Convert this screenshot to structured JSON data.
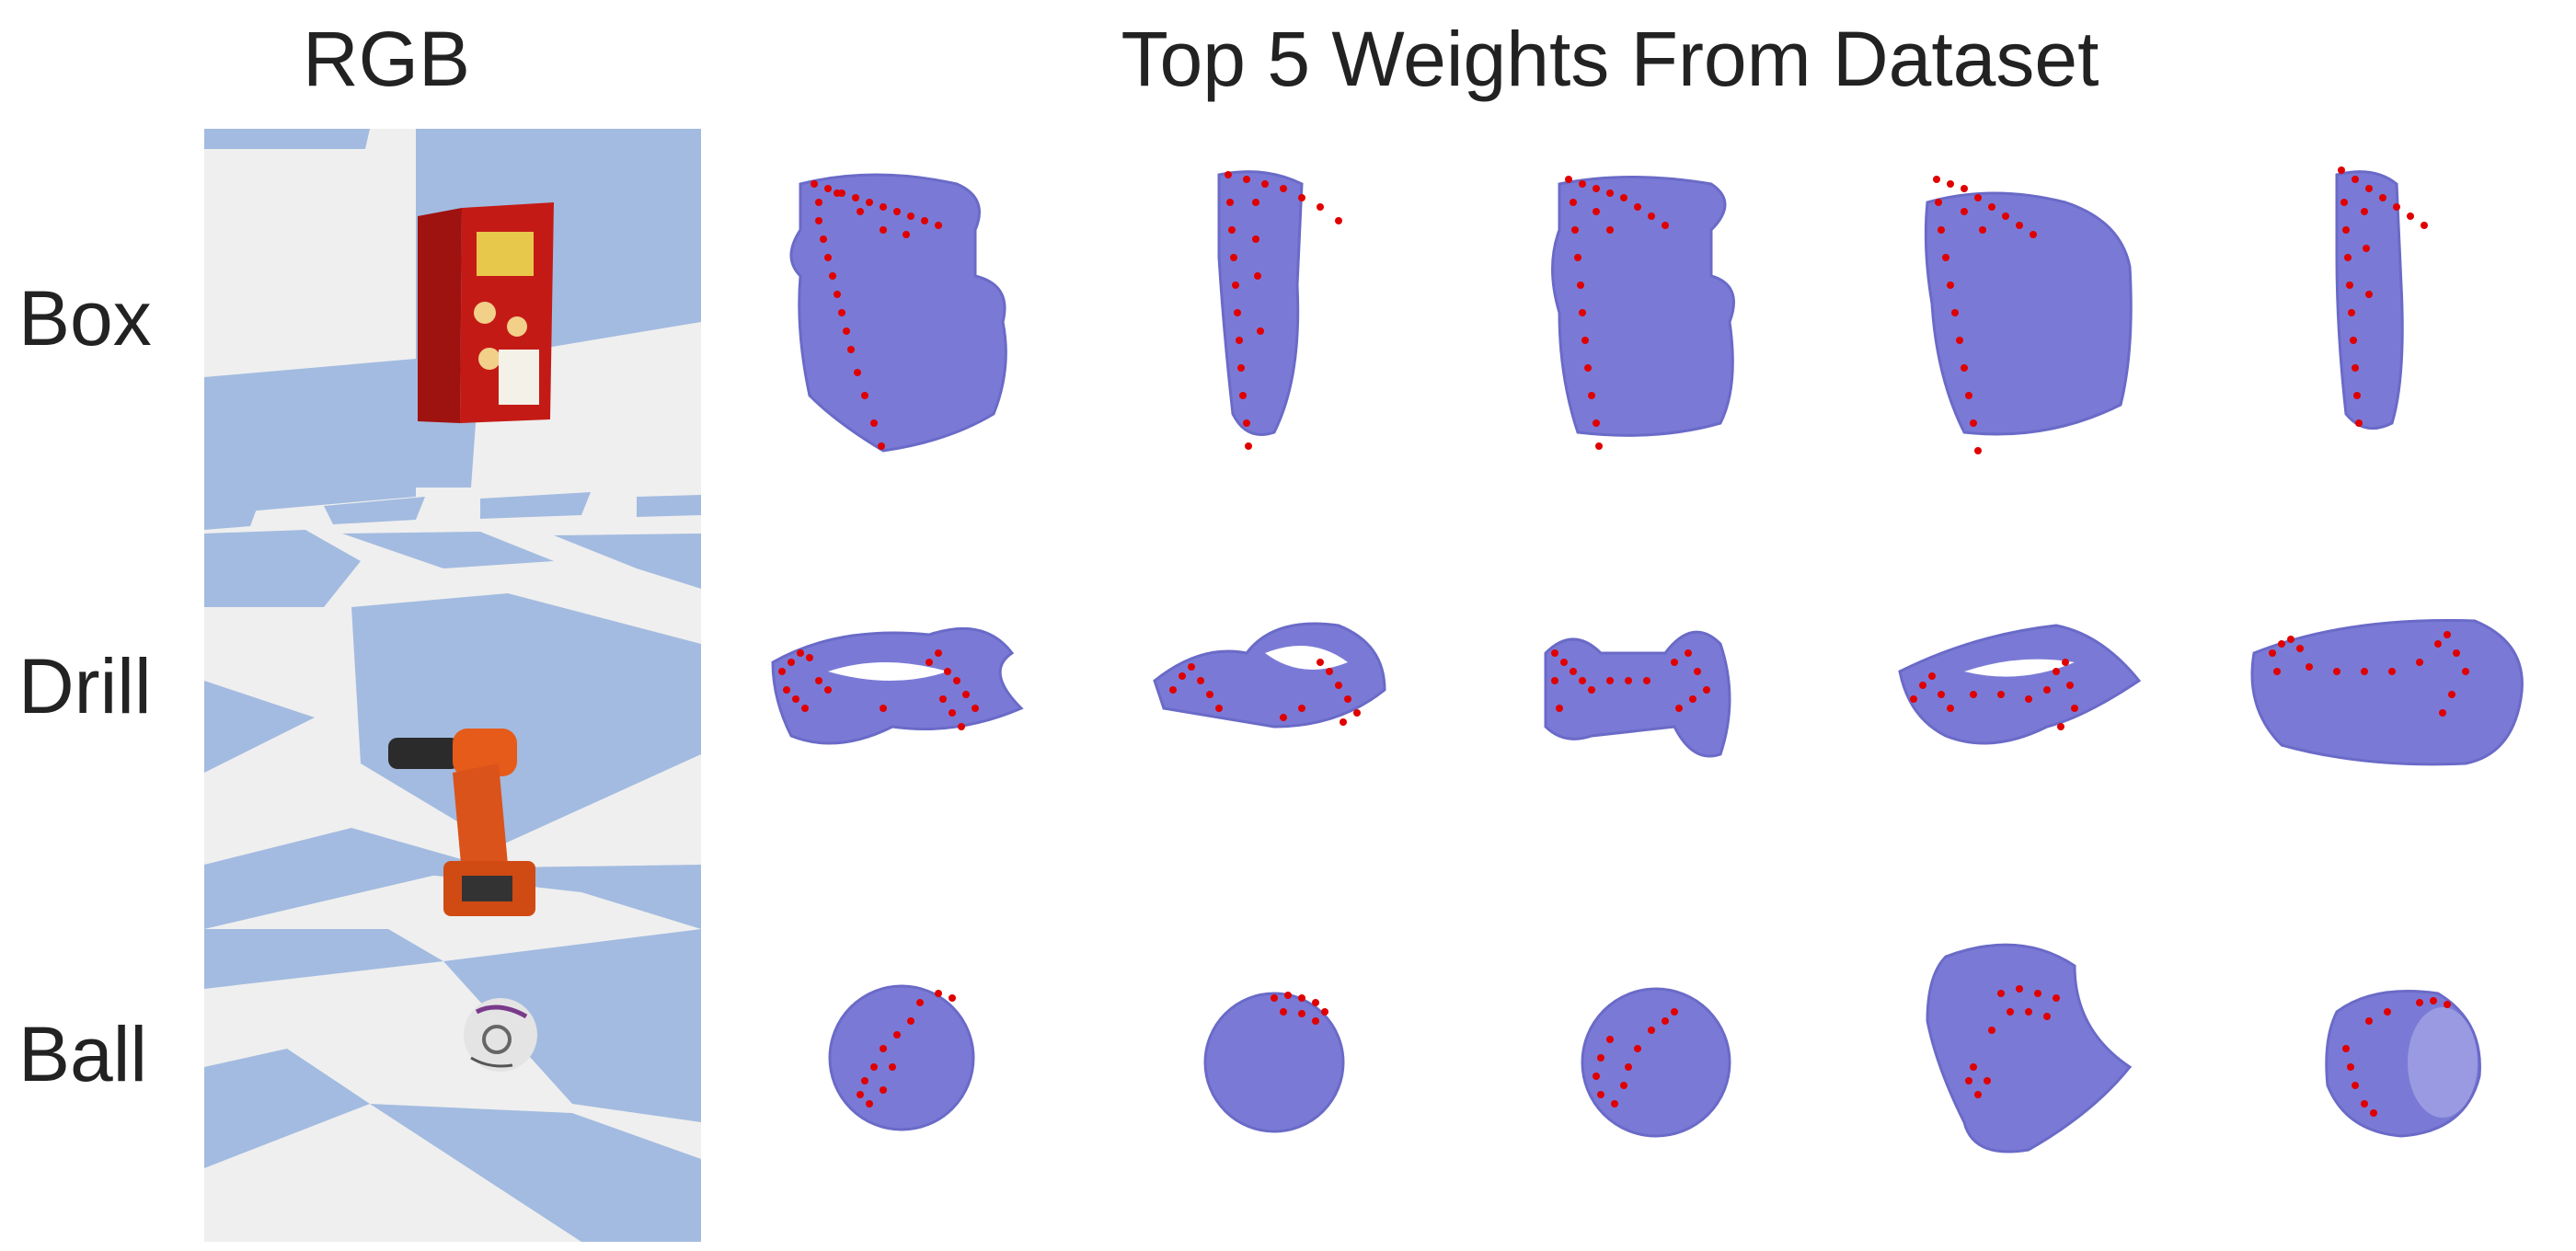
{
  "headers": {
    "rgb": "RGB",
    "weights": "Top 5 Weights From Dataset"
  },
  "rows": [
    {
      "label": "Box",
      "object": "cracker-box"
    },
    {
      "label": "Drill",
      "object": "power-drill"
    },
    {
      "label": "Ball",
      "object": "soccer-ball"
    }
  ],
  "colors": {
    "mesh": "#7a7ad6",
    "mesh_edge": "#6a6ac8",
    "points": "#e00000",
    "floor_blue": "#a3bbe0",
    "floor_grey": "#efefef"
  }
}
